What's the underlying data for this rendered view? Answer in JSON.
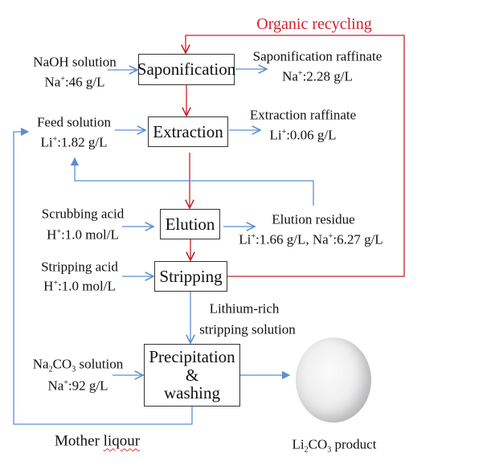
{
  "title": "Organic recycling",
  "process_steps": {
    "saponification": "Saponification",
    "extraction": "Extraction",
    "elution": "Elution",
    "stripping": "Stripping",
    "precipitation": [
      "Precipitation",
      "&",
      "washing"
    ]
  },
  "inputs": {
    "naoh": {
      "name": "NaOH solution",
      "ion": "Na",
      "charge": "+",
      "value": ":46 g/L"
    },
    "feed": {
      "name": "Feed solution",
      "ion": "Li",
      "charge": "+",
      "value": ":1.82 g/L"
    },
    "scrubbing": {
      "name": "Scrubbing acid",
      "ion": "H",
      "charge": "+",
      "value": ":1.0 mol/L"
    },
    "stripping_acid": {
      "name": "Stripping acid",
      "ion": "H",
      "charge": "+",
      "value": ":1.0 mol/L"
    },
    "na2co3": {
      "name_parts": [
        "Na",
        "2",
        "CO",
        "3",
        " solution"
      ],
      "ion": "Na",
      "charge": "+",
      "value": ":92 g/L"
    }
  },
  "outputs": {
    "sap_raffinate": {
      "name": "Saponification raffinate",
      "ion": "Na",
      "charge": "+",
      "value": ":2.28 g/L"
    },
    "ext_raffinate": {
      "name": "Extraction raffinate",
      "ion": "Li",
      "charge": "+",
      "value": ":0.06 g/L"
    },
    "elution_residue": {
      "name": "Elution residue",
      "ion1": "Li",
      "charge": "+",
      "value1": ":1.66 g/L, ",
      "ion2": "Na",
      "value2": ":6.27 g/L"
    },
    "lithium_rich": [
      "Lithium-rich",
      "stripping solution"
    ],
    "mother_liquor": [
      "Mother ",
      "liqour"
    ],
    "product": {
      "parts": [
        "Li",
        "2",
        "CO",
        "3",
        " product"
      ]
    }
  },
  "colors": {
    "recycle": "#d0202a",
    "flow": "#5b8fd0",
    "organic_flow": "#c8202a"
  }
}
